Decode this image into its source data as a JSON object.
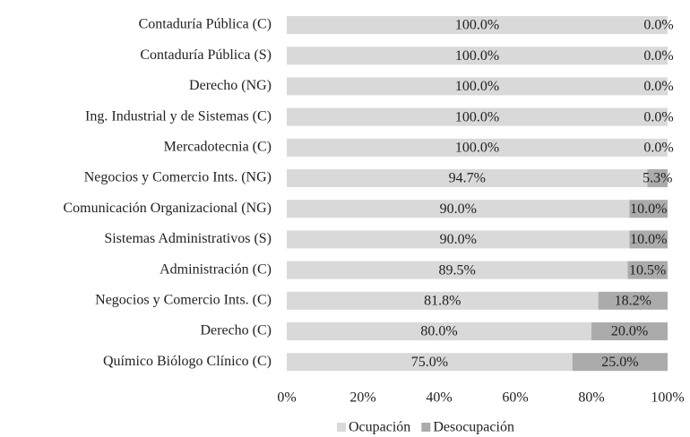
{
  "chart_data": {
    "type": "stacked_barh",
    "categories": [
      "Contaduría Pública (C)",
      "Contaduría Pública (S)",
      "Derecho (NG)",
      "Ing. Industrial y de Sistemas (C)",
      "Mercadotecnia (C)",
      "Negocios y Comercio Ints. (NG)",
      "Comunicación Organizacional (NG)",
      "Sistemas Administrativos (S)",
      "Administración (C)",
      "Negocios y Comercio Ints. (C)",
      "Derecho (C)",
      "Químico Biólogo Clínico (C)"
    ],
    "series": [
      {
        "name": "Ocupación",
        "color": "#d9d9d9",
        "values": [
          100,
          100,
          100,
          100,
          100,
          94.7,
          90,
          90,
          89.5,
          81.8,
          80,
          75
        ],
        "value_labels": [
          "100.0%",
          "100.0%",
          "100.0%",
          "100.0%",
          "100.0%",
          "94.7%",
          "90.0%",
          "90.0%",
          "89.5%",
          "81.8%",
          "80.0%",
          "75.0%"
        ]
      },
      {
        "name": "Desocupación",
        "color": "#ababab",
        "values": [
          0,
          0,
          0,
          0,
          0,
          5.3,
          10,
          10,
          10.5,
          18.2,
          20,
          25
        ],
        "value_labels": [
          "0.0%",
          "0.0%",
          "0.0%",
          "0.0%",
          "0.0%",
          "5.3%",
          "10.0%",
          "10.0%",
          "10.5%",
          "18.2%",
          "20.0%",
          "25.0%"
        ]
      }
    ],
    "xlim": [
      0,
      100
    ],
    "xticks": [
      {
        "value": 0,
        "label": "0%"
      },
      {
        "value": 20,
        "label": "20%"
      },
      {
        "value": 40,
        "label": "40%"
      },
      {
        "value": 60,
        "label": "60%"
      },
      {
        "value": 80,
        "label": "80%"
      },
      {
        "value": 100,
        "label": "100%"
      }
    ],
    "legend": "bottom"
  }
}
